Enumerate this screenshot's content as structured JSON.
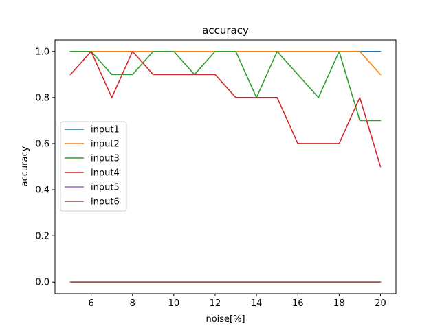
{
  "chart_data": {
    "type": "line",
    "title": "accuracy",
    "xlabel": "noise[%]",
    "ylabel": "accuracy",
    "xlim": [
      4.25,
      20.75
    ],
    "ylim": [
      -0.05,
      1.05
    ],
    "xticks": [
      6,
      8,
      10,
      12,
      14,
      16,
      18,
      20
    ],
    "xtick_labels": [
      "6",
      "8",
      "10",
      "12",
      "14",
      "16",
      "18",
      "20"
    ],
    "yticks": [
      0.0,
      0.2,
      0.4,
      0.6,
      0.8,
      1.0
    ],
    "ytick_labels": [
      "0.0",
      "0.2",
      "0.4",
      "0.6",
      "0.8",
      "1.0"
    ],
    "grid": false,
    "legend_position": "center-left",
    "x": [
      5,
      6,
      7,
      8,
      9,
      10,
      11,
      12,
      13,
      14,
      15,
      16,
      17,
      18,
      19,
      20
    ],
    "series": [
      {
        "name": "input1",
        "color": "#1f77b4",
        "values": [
          1.0,
          1.0,
          1.0,
          1.0,
          1.0,
          1.0,
          1.0,
          1.0,
          1.0,
          1.0,
          1.0,
          1.0,
          1.0,
          1.0,
          1.0,
          1.0
        ]
      },
      {
        "name": "input2",
        "color": "#ff7f0e",
        "values": [
          1.0,
          1.0,
          1.0,
          1.0,
          1.0,
          1.0,
          1.0,
          1.0,
          1.0,
          1.0,
          1.0,
          1.0,
          1.0,
          1.0,
          1.0,
          0.9
        ]
      },
      {
        "name": "input3",
        "color": "#2ca02c",
        "values": [
          1.0,
          1.0,
          0.9,
          0.9,
          1.0,
          1.0,
          0.9,
          1.0,
          1.0,
          0.8,
          1.0,
          0.9,
          0.8,
          1.0,
          0.7,
          0.7
        ]
      },
      {
        "name": "input4",
        "color": "#d62728",
        "values": [
          0.9,
          1.0,
          0.8,
          1.0,
          0.9,
          0.9,
          0.9,
          0.9,
          0.8,
          0.8,
          0.8,
          0.6,
          0.6,
          0.6,
          0.8,
          0.5
        ]
      },
      {
        "name": "input5",
        "color": "#9467bd",
        "values": [
          0,
          0,
          0,
          0,
          0,
          0,
          0,
          0,
          0,
          0,
          0,
          0,
          0,
          0,
          0,
          0
        ]
      },
      {
        "name": "input6",
        "color": "#8c564b",
        "values": [
          0,
          0,
          0,
          0,
          0,
          0,
          0,
          0,
          0,
          0,
          0,
          0,
          0,
          0,
          0,
          0
        ]
      }
    ]
  }
}
